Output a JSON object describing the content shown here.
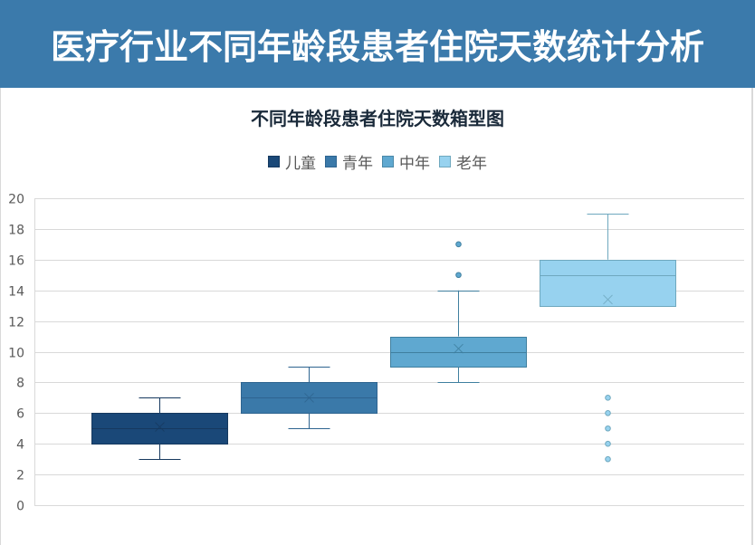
{
  "header": {
    "title": "医疗行业不同年龄段患者住院天数统计分析"
  },
  "colors": {
    "header_bg": "#3b7aab",
    "child": "#1a4878",
    "youth": "#3a79a9",
    "middle": "#5fa8d0",
    "elder": "#97d2ef",
    "grid": "#d9d9d9"
  },
  "chart_data": {
    "type": "boxplot",
    "title": "不同年龄段患者住院天数箱型图",
    "xlabel": "",
    "ylabel": "",
    "ylim": [
      0,
      20
    ],
    "yticks": [
      0,
      2,
      4,
      6,
      8,
      10,
      12,
      14,
      16,
      18,
      20
    ],
    "grid": true,
    "legend_position": "top",
    "legend": [
      "儿童",
      "青年",
      "中年",
      "老年"
    ],
    "series": [
      {
        "name": "儿童",
        "min": 3,
        "q1": 4,
        "median": 5,
        "q3": 6,
        "max": 7,
        "mean": 5.1,
        "outliers": []
      },
      {
        "name": "青年",
        "min": 5,
        "q1": 6,
        "median": 7,
        "q3": 8,
        "max": 9,
        "mean": 7.0,
        "outliers": []
      },
      {
        "name": "中年",
        "min": 8,
        "q1": 9,
        "median": 10,
        "q3": 11,
        "max": 14,
        "mean": 10.2,
        "outliers": [
          15,
          17
        ]
      },
      {
        "name": "老年",
        "min": 13,
        "q1": 13,
        "median": 15,
        "q3": 16,
        "max": 19,
        "mean": 13.4,
        "outliers": [
          3,
          4,
          5,
          6,
          7
        ]
      }
    ]
  }
}
